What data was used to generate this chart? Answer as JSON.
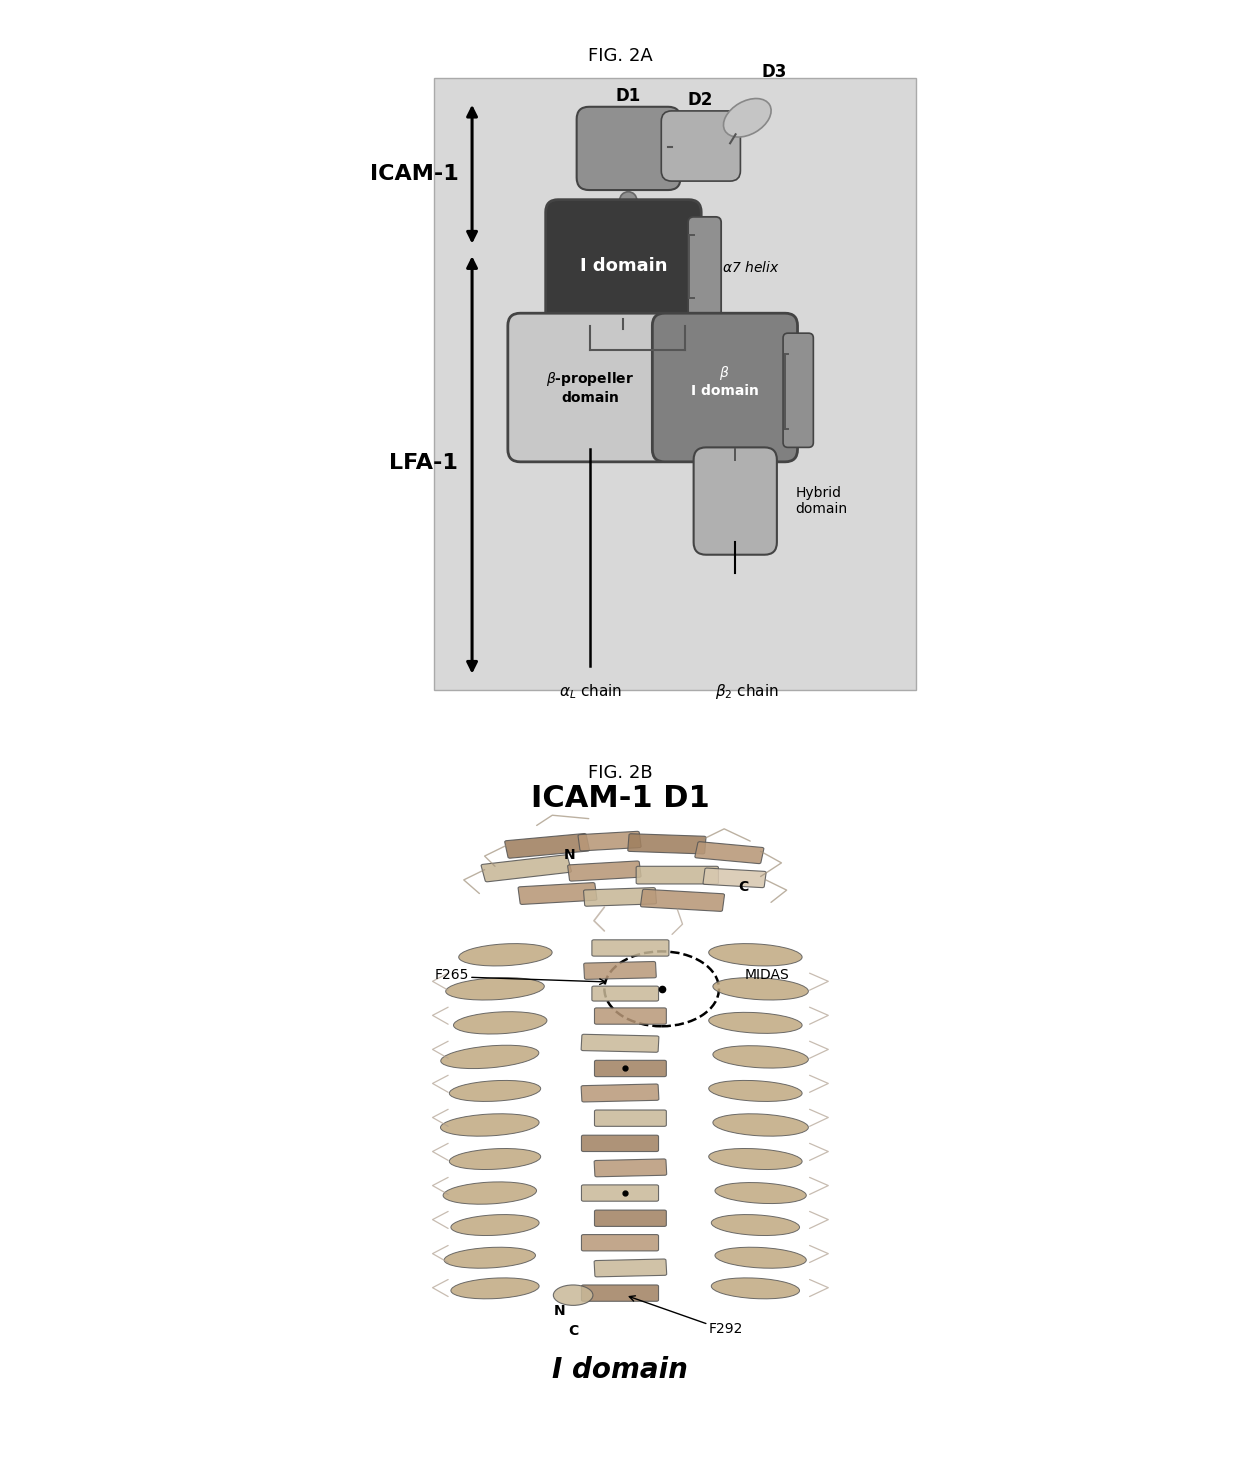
{
  "fig_title_a": "FIG. 2A",
  "fig_title_b": "FIG. 2B",
  "background_color": "#ffffff",
  "icam1_label": "ICAM-1",
  "lfa1_label": "LFA-1",
  "colors": {
    "dark_domain": "#3a3a3a",
    "medium_domain": "#808080",
    "light_domain": "#b8b8b8",
    "lighter_domain": "#c8c8c8",
    "panel_bg": "#d8d8d8",
    "box_border": "#444444",
    "alpha7_color": "#909090",
    "small_circle": "#909090",
    "hybrid_color": "#b0b0b0",
    "d1_color": "#909090",
    "d2_color": "#b0b0b0",
    "d3_color": "#c0c0c0"
  },
  "panel_b": {
    "title": "ICAM-1 D1",
    "subtitle": "I domain",
    "protein_color_dark": "#a08060",
    "protein_color_mid": "#b89878",
    "protein_color_light": "#c8b898",
    "protein_color_vlight": "#d8c8b0",
    "helix_color": "#c0a880",
    "loop_color": "#b0a090"
  }
}
